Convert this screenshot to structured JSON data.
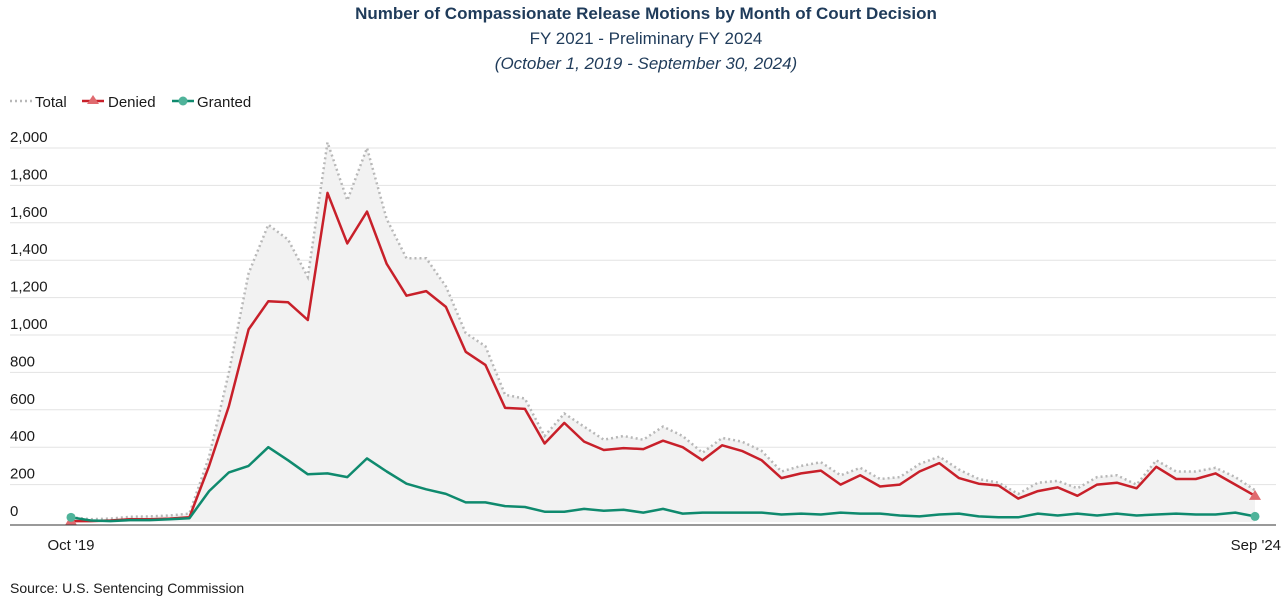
{
  "chart_data": {
    "type": "line",
    "title": "Number of Compassionate Release Motions by Month of Court Decision",
    "subtitle": "FY 2021 - Preliminary FY 2024",
    "subtitle2": "(October 1, 2019 - September 30, 2024)",
    "source": "Source: U.S. Sentencing Commission",
    "x_labels": [
      "Oct '19",
      "Sep '24"
    ],
    "ylim": [
      0,
      2000
    ],
    "yticks": [
      "0",
      "200",
      "400",
      "600",
      "800",
      "1,000",
      "1,200",
      "1,400",
      "1,600",
      "1,800",
      "2,000"
    ],
    "ytick_values": [
      0,
      200,
      400,
      600,
      800,
      1000,
      1200,
      1400,
      1600,
      1800,
      2000
    ],
    "grid": true,
    "legend_position": "top-left",
    "colors": {
      "total": "#b8b8b8",
      "denied": "#c8202a",
      "granted": "#0f8a6e",
      "fill": "#f2f2f2",
      "marker_end": "#e06a6f",
      "marker_granted_end": "#4fb39a"
    },
    "series": [
      {
        "name": "Total",
        "values": [
          25,
          15,
          18,
          28,
          30,
          35,
          45,
          350,
          800,
          1330,
          1590,
          1510,
          1310,
          2030,
          1720,
          2000,
          1620,
          1410,
          1410,
          1260,
          1010,
          940,
          680,
          660,
          460,
          580,
          510,
          440,
          460,
          440,
          510,
          460,
          370,
          450,
          430,
          380,
          270,
          300,
          320,
          250,
          290,
          230,
          240,
          310,
          350,
          280,
          230,
          210,
          150,
          210,
          220,
          180,
          240,
          250,
          200,
          330,
          270,
          270,
          290,
          240,
          170
        ]
      },
      {
        "name": "Denied",
        "values": [
          5,
          5,
          8,
          15,
          15,
          18,
          25,
          300,
          620,
          1030,
          1180,
          1175,
          1080,
          1760,
          1490,
          1660,
          1380,
          1210,
          1235,
          1150,
          910,
          840,
          610,
          605,
          420,
          530,
          430,
          385,
          395,
          390,
          435,
          400,
          330,
          410,
          380,
          330,
          235,
          260,
          275,
          200,
          250,
          190,
          200,
          270,
          315,
          235,
          205,
          195,
          125,
          165,
          185,
          140,
          200,
          210,
          180,
          295,
          230,
          230,
          260,
          200,
          140
        ]
      },
      {
        "name": "Granted",
        "values": [
          25,
          8,
          5,
          10,
          10,
          15,
          20,
          165,
          265,
          300,
          400,
          330,
          255,
          260,
          240,
          340,
          270,
          205,
          175,
          150,
          105,
          105,
          85,
          80,
          55,
          55,
          70,
          60,
          65,
          50,
          70,
          45,
          50,
          50,
          50,
          50,
          40,
          45,
          40,
          50,
          45,
          45,
          35,
          30,
          40,
          45,
          30,
          25,
          25,
          45,
          35,
          45,
          35,
          45,
          35,
          40,
          45,
          40,
          40,
          50,
          30
        ]
      }
    ]
  }
}
